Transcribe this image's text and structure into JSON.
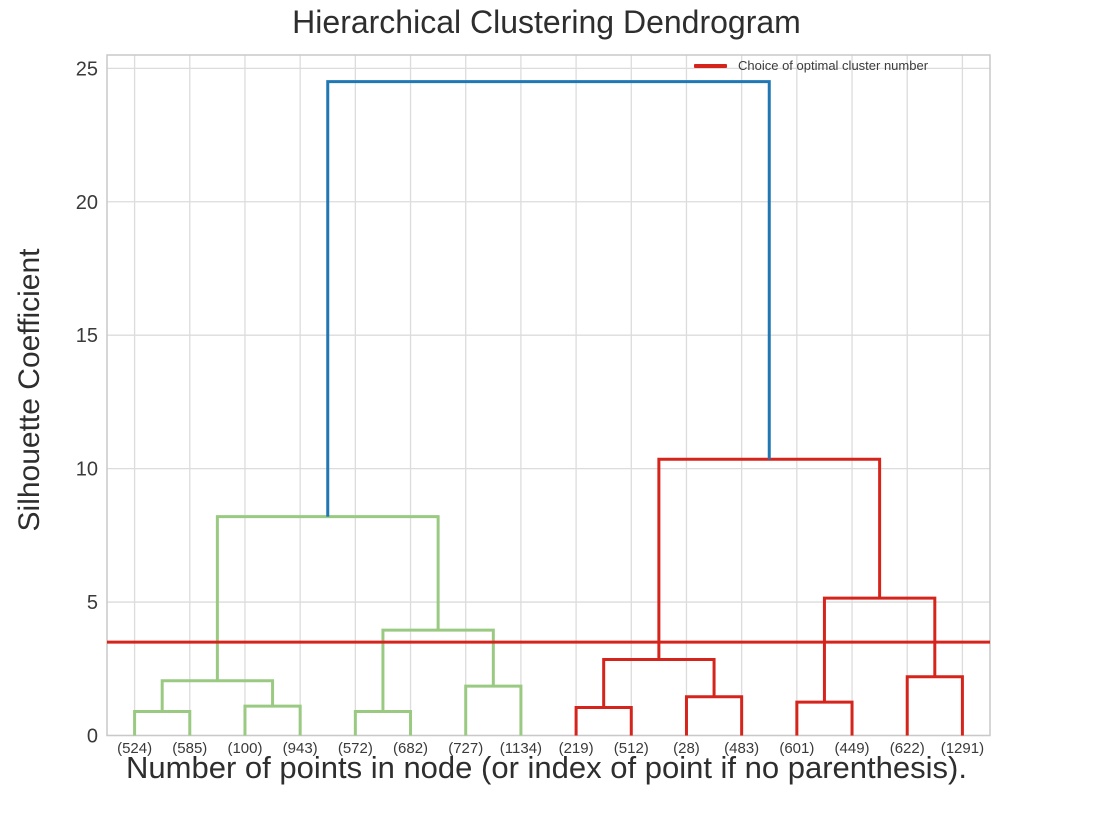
{
  "chart_data": {
    "type": "dendrogram",
    "title": "Hierarchical Clustering Dendrogram",
    "xlabel": "Number of points in node (or index of point if no parenthesis).",
    "ylabel": "Silhouette Coefficient",
    "ylim": [
      0,
      25.5
    ],
    "yticks": [
      0,
      5,
      10,
      15,
      20,
      25
    ],
    "grid": true,
    "leaves": [
      "(524)",
      "(585)",
      "(100)",
      "(943)",
      "(572)",
      "(682)",
      "(727)",
      "(1134)",
      "(219)",
      "(512)",
      "(28)",
      "(483)",
      "(601)",
      "(449)",
      "(622)",
      "(1291)"
    ],
    "links": [
      {
        "id": "A",
        "left": "L0",
        "right": "L1",
        "height": 0.9,
        "color": "green"
      },
      {
        "id": "B",
        "left": "L2",
        "right": "L3",
        "height": 1.1,
        "color": "green"
      },
      {
        "id": "C",
        "left": "A",
        "right": "B",
        "height": 2.05,
        "color": "green"
      },
      {
        "id": "D",
        "left": "L4",
        "right": "L5",
        "height": 0.9,
        "color": "green"
      },
      {
        "id": "E",
        "left": "L6",
        "right": "L7",
        "height": 1.85,
        "color": "green"
      },
      {
        "id": "F",
        "left": "D",
        "right": "E",
        "height": 3.95,
        "color": "green"
      },
      {
        "id": "G",
        "left": "C",
        "right": "F",
        "height": 8.2,
        "color": "green"
      },
      {
        "id": "H",
        "left": "L8",
        "right": "L9",
        "height": 1.05,
        "color": "red"
      },
      {
        "id": "I",
        "left": "L10",
        "right": "L11",
        "height": 1.45,
        "color": "red"
      },
      {
        "id": "J",
        "left": "H",
        "right": "I",
        "height": 2.85,
        "color": "red"
      },
      {
        "id": "K",
        "left": "L12",
        "right": "L13",
        "height": 1.25,
        "color": "red"
      },
      {
        "id": "L",
        "left": "L14",
        "right": "L15",
        "height": 2.2,
        "color": "red"
      },
      {
        "id": "M",
        "left": "K",
        "right": "L",
        "height": 5.15,
        "color": "red"
      },
      {
        "id": "N",
        "left": "J",
        "right": "M",
        "height": 10.35,
        "color": "red"
      },
      {
        "id": "ROOT",
        "left": "G",
        "right": "N",
        "height": 24.5,
        "color": "blue"
      }
    ],
    "cut_line": {
      "value": 3.5,
      "color_key": "red"
    },
    "legend": {
      "position": "upper right",
      "entries": [
        {
          "label": "Choice of optimal cluster number",
          "color_key": "red"
        }
      ]
    },
    "palette": {
      "green": "#9aca82",
      "red": "#d5241c",
      "blue": "#1f77b4"
    }
  },
  "style": {
    "grid_color": "#dcdcdc",
    "spine_color": "#c9c9c9",
    "tick_text_color": "#3a3a3a"
  }
}
